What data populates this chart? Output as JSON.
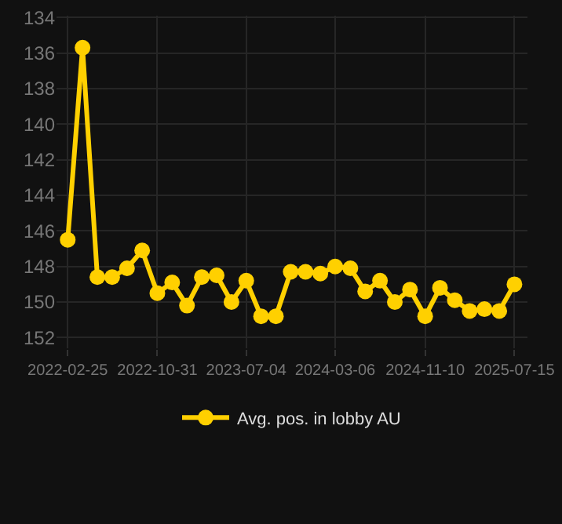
{
  "chart_data": {
    "type": "line",
    "x": [
      "2022-02-25",
      "2022-04-07",
      "2022-05-18",
      "2022-06-28",
      "2022-08-08",
      "2022-09-19",
      "2022-10-31",
      "2022-12-11",
      "2023-01-21",
      "2023-03-03",
      "2023-04-13",
      "2023-05-24",
      "2023-07-04",
      "2023-08-14",
      "2023-09-24",
      "2023-11-04",
      "2023-12-15",
      "2024-01-25",
      "2024-03-06",
      "2024-04-17",
      "2024-05-28",
      "2024-07-08",
      "2024-08-18",
      "2024-09-29",
      "2024-11-10",
      "2024-12-21",
      "2025-01-31",
      "2025-03-13",
      "2025-04-23",
      "2025-06-03",
      "2025-07-15"
    ],
    "series": [
      {
        "name": "Avg. pos. in lobby AU",
        "color": "#ffd000",
        "values": [
          146.5,
          135.7,
          148.6,
          148.6,
          148.1,
          147.1,
          149.5,
          148.9,
          150.2,
          148.6,
          148.5,
          150.0,
          148.8,
          150.8,
          150.8,
          148.3,
          148.3,
          148.4,
          148.0,
          148.1,
          149.4,
          148.8,
          150.0,
          149.3,
          150.8,
          149.2,
          149.9,
          150.5,
          150.4,
          150.5,
          149.0
        ]
      }
    ],
    "xlim": [
      "2022-01-25",
      "2025-08-20"
    ],
    "xticks": [
      "2022-02-25",
      "2022-10-31",
      "2023-07-04",
      "2024-03-06",
      "2024-11-10",
      "2025-07-15"
    ],
    "ylim": [
      152.6,
      133.9
    ],
    "yticks": [
      134,
      136,
      138,
      140,
      142,
      144,
      146,
      148,
      150,
      152
    ],
    "grid": true,
    "legend": "bottom",
    "marker": "circle",
    "line_style": "solid"
  }
}
